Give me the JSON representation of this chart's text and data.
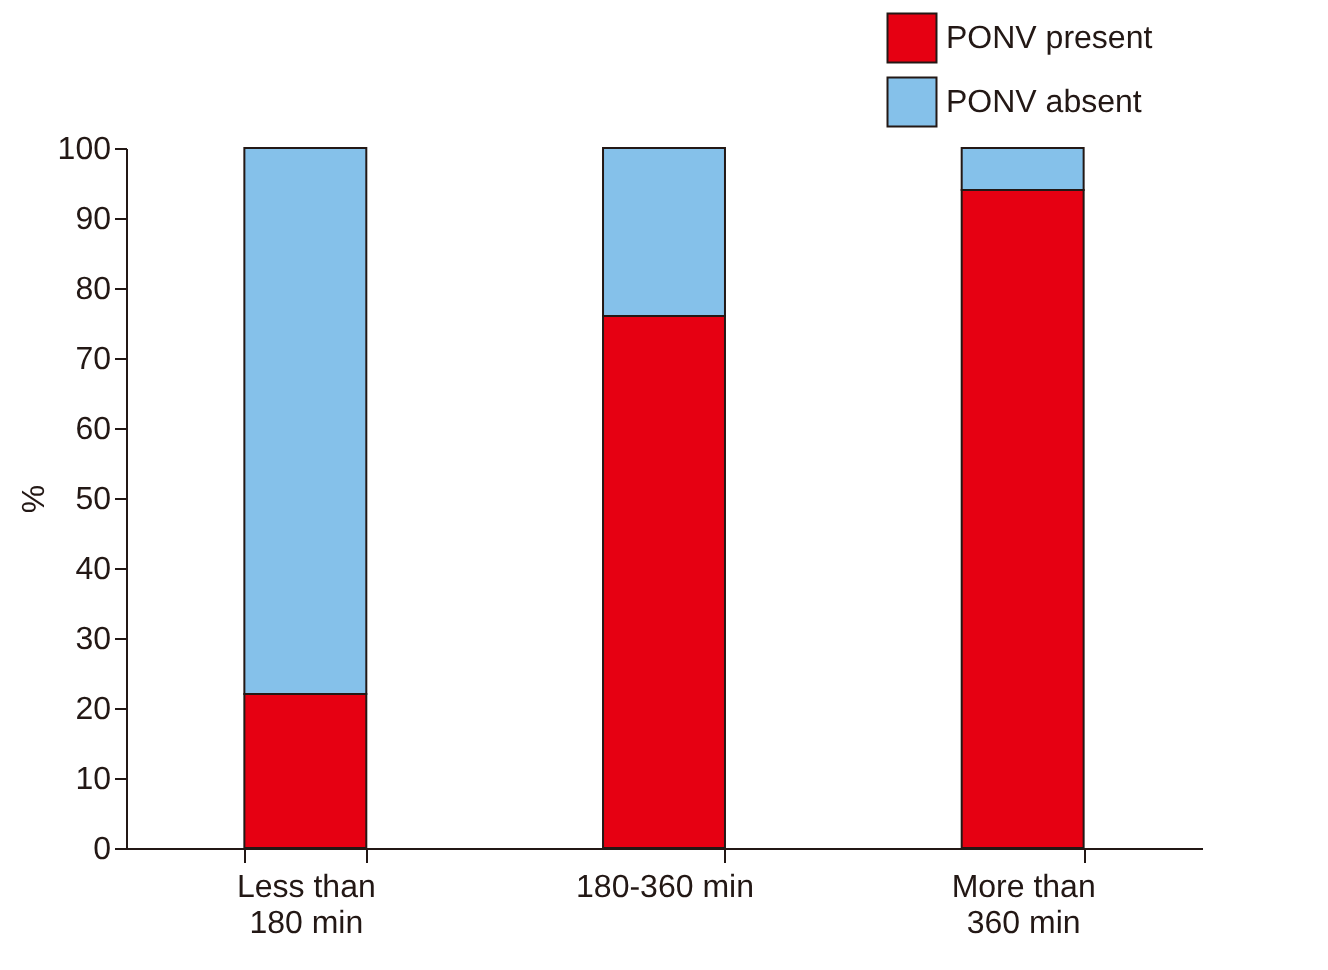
{
  "chart_data": {
    "type": "bar",
    "stacked": true,
    "ylabel": "%",
    "categories": [
      "Less than\n180 min",
      "180-360 min",
      "More than\n360 min"
    ],
    "series": [
      {
        "name": "PONV present",
        "color": "#e60012",
        "values": [
          22,
          76,
          94
        ]
      },
      {
        "name": "PONV absent",
        "color": "#85c1ea",
        "values": [
          78,
          24,
          6
        ]
      }
    ],
    "ylim": [
      0,
      100
    ],
    "yticks": [
      0,
      10,
      20,
      30,
      40,
      50,
      60,
      70,
      80,
      90,
      100
    ],
    "grid": false,
    "legend": "top right"
  }
}
